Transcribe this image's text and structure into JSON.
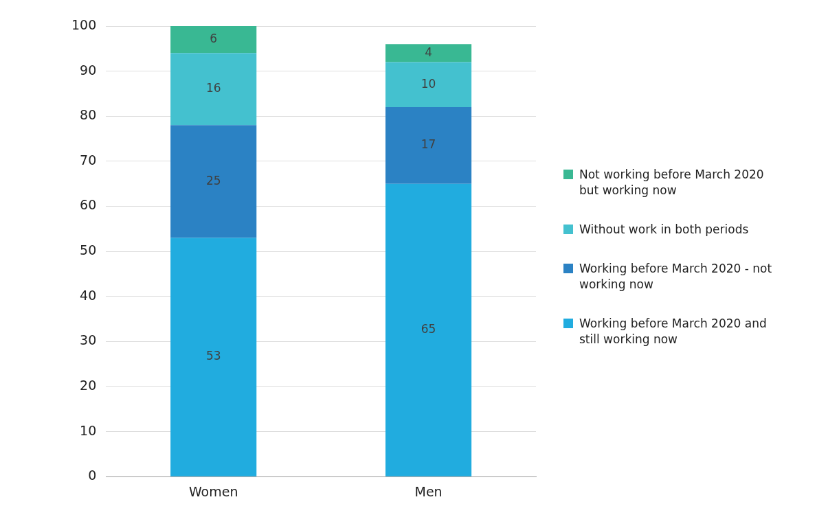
{
  "chart_data": {
    "type": "bar",
    "stacked": true,
    "categories": [
      "Women",
      "Men"
    ],
    "series": [
      {
        "name": "Working before March 2020 and still working now",
        "color": "#21acdf",
        "values": [
          53,
          65
        ]
      },
      {
        "name": "Working before March 2020 - not working now",
        "color": "#2b82c4",
        "values": [
          25,
          17
        ]
      },
      {
        "name": "Without work in both periods",
        "color": "#44c1cf",
        "values": [
          16,
          10
        ]
      },
      {
        "name": "Not working before March 2020 but working now",
        "color": "#39b893",
        "values": [
          6,
          4
        ]
      }
    ],
    "ylim": [
      0,
      100
    ],
    "yticks": [
      0,
      10,
      20,
      30,
      40,
      50,
      60,
      70,
      80,
      90,
      100
    ],
    "grid": "y",
    "legend": "right",
    "data_labels": true
  }
}
